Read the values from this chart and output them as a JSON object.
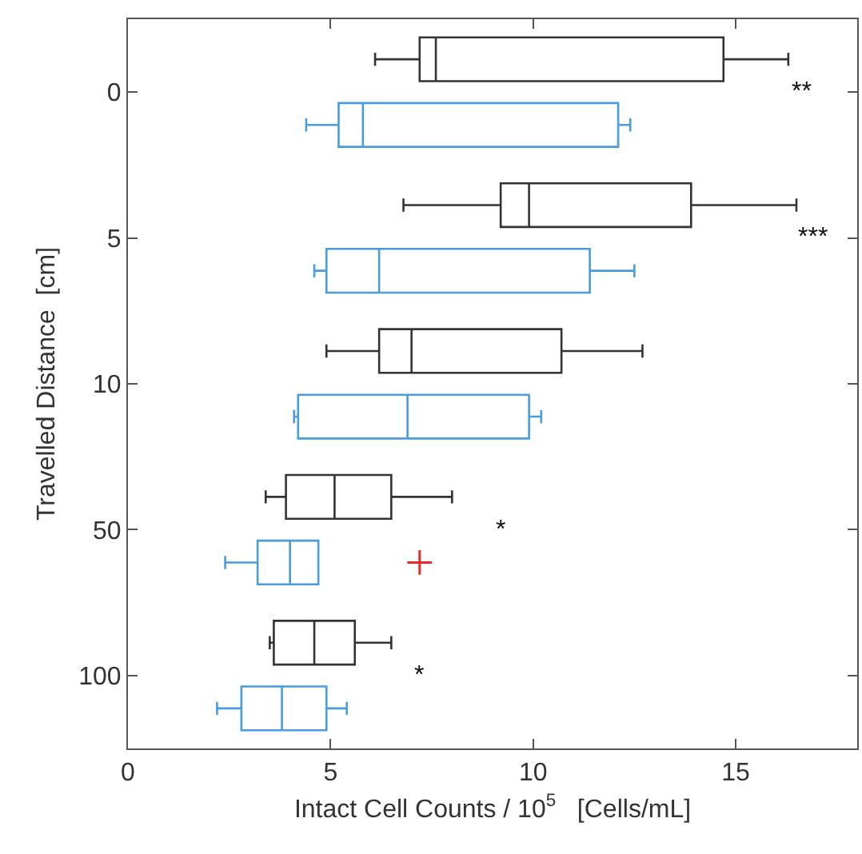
{
  "chart_data": {
    "type": "box",
    "orientation": "horizontal",
    "xlabel": "Intact Cell Counts / 10$^{5}$   [Cells/mL]",
    "ylabel": "Travelled Distance  [cm]",
    "categories": [
      "0",
      "5",
      "10",
      "50",
      "100"
    ],
    "xlim": [
      0,
      18
    ],
    "xticks": [
      0,
      5,
      10,
      15
    ],
    "series": [
      {
        "color": "#333333",
        "boxes": [
          {
            "low": 6.1,
            "q1": 7.2,
            "median": 7.6,
            "q3": 14.7,
            "high": 16.3
          },
          {
            "low": 6.8,
            "q1": 9.2,
            "median": 9.9,
            "q3": 13.9,
            "high": 16.5
          },
          {
            "low": 4.9,
            "q1": 6.2,
            "median": 7.0,
            "q3": 10.7,
            "high": 12.7
          },
          {
            "low": 3.4,
            "q1": 3.9,
            "median": 5.1,
            "q3": 6.5,
            "high": 8.0
          },
          {
            "low": 3.5,
            "q1": 3.6,
            "median": 4.6,
            "q3": 5.6,
            "high": 6.5
          }
        ]
      },
      {
        "color": "#4a9ce0",
        "boxes": [
          {
            "low": 4.4,
            "q1": 5.2,
            "median": 5.8,
            "q3": 12.1,
            "high": 12.4
          },
          {
            "low": 4.6,
            "q1": 4.9,
            "median": 6.2,
            "q3": 11.4,
            "high": 12.5
          },
          {
            "low": 4.1,
            "q1": 4.2,
            "median": 6.9,
            "q3": 9.9,
            "high": 10.2
          },
          {
            "low": 2.4,
            "q1": 3.2,
            "median": 4.0,
            "q3": 4.7,
            "high": 4.7,
            "outliers": [
              7.2
            ]
          },
          {
            "low": 2.2,
            "q1": 2.8,
            "median": 3.8,
            "q3": 4.9,
            "high": 5.4
          }
        ]
      }
    ],
    "annotations": [
      "**",
      "***",
      "*",
      "*"
    ]
  }
}
